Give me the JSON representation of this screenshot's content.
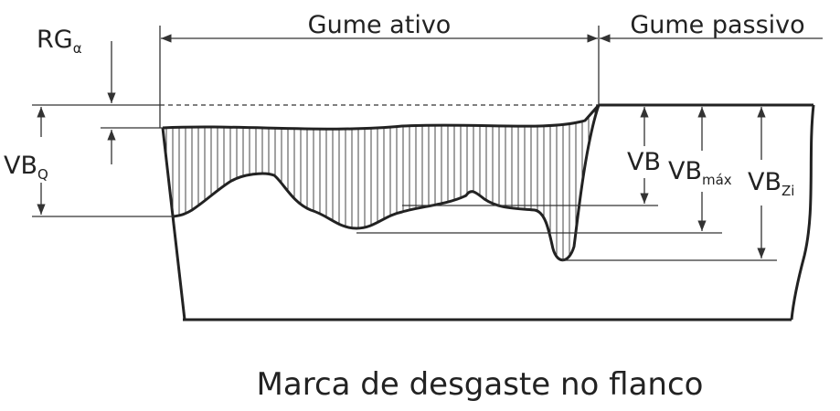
{
  "title": "Marca de desgaste no flanco",
  "labels": {
    "gume_ativo": "Gume ativo",
    "gume_passivo": "Gume passivo",
    "rg": {
      "main": "RG",
      "sub": "α"
    },
    "vbq": {
      "main": "VB",
      "sub": "Q"
    },
    "vb": "VB",
    "vbmax": {
      "main": "VB",
      "sub": "máx"
    },
    "vbzi": {
      "main": "VB",
      "sub": "Zi"
    }
  }
}
